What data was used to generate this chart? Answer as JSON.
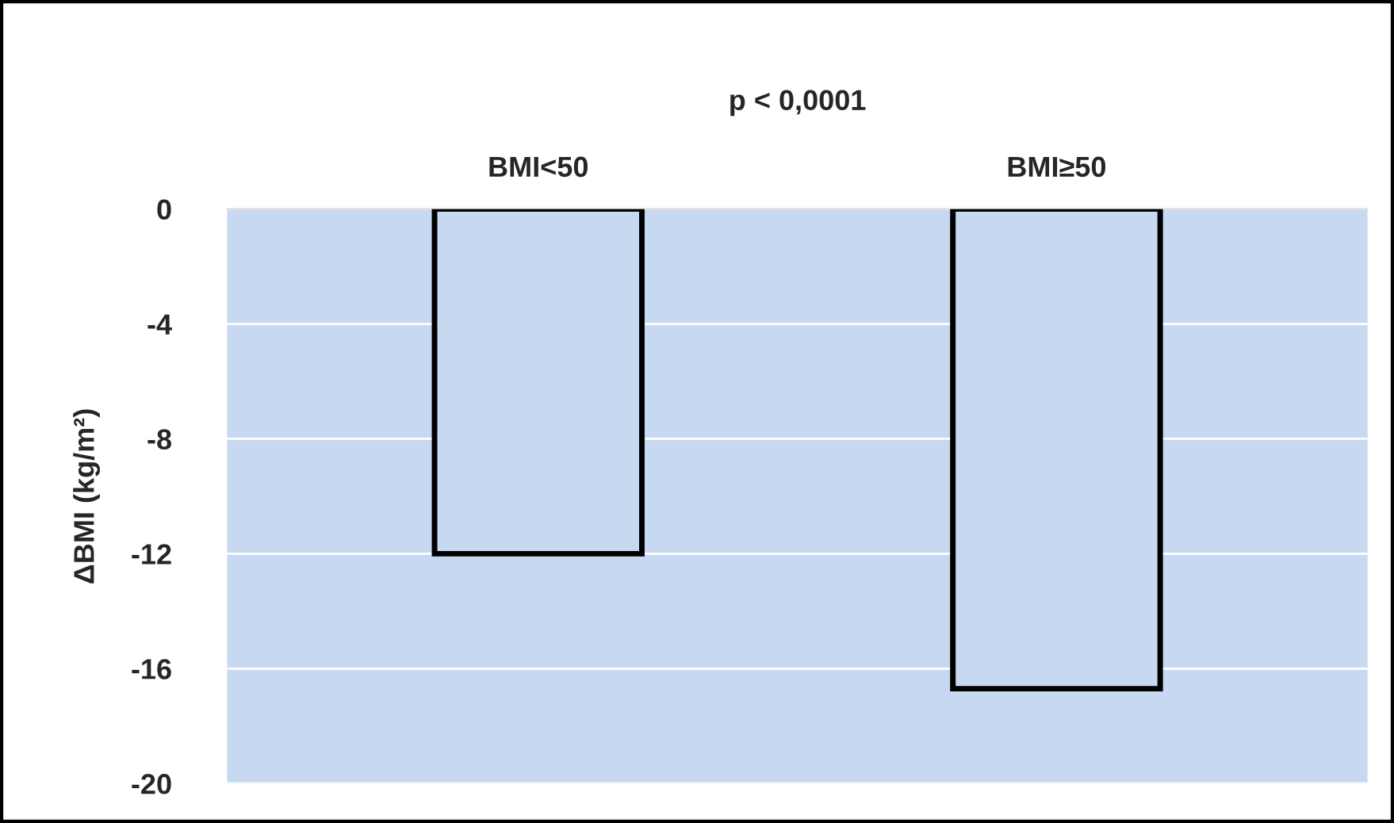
{
  "chart_data": {
    "type": "bar",
    "title": "p < 0,0001",
    "ylabel": "ΔBMI (kg/m²)",
    "categories": [
      "BMI<50",
      "BMI≥50"
    ],
    "series": [
      {
        "color": "#c6d9f1",
        "values": [
          -12,
          -16.7
        ]
      }
    ],
    "ylim": [
      -20,
      0
    ],
    "yticks": [
      {
        "value": 0,
        "label": "0"
      },
      {
        "value": -4,
        "label": "-4"
      },
      {
        "value": -8,
        "label": "-8"
      },
      {
        "value": -12,
        "label": "-12"
      },
      {
        "value": -16,
        "label": "-16"
      },
      {
        "value": -20,
        "label": "-20"
      }
    ],
    "grid": "y",
    "legend": false
  }
}
